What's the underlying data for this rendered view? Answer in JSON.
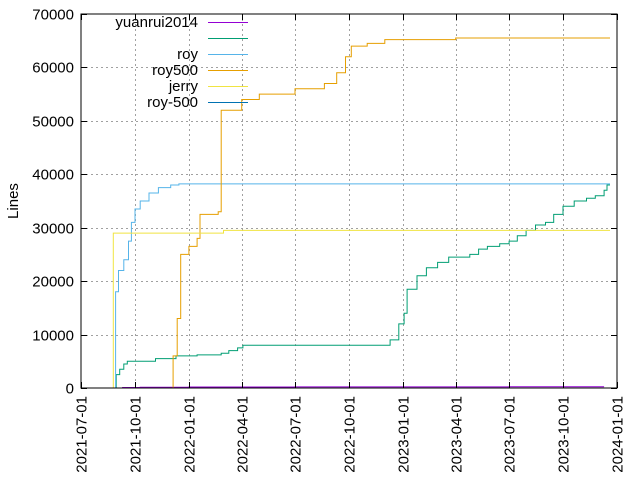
{
  "chart_data": {
    "type": "line",
    "title": "",
    "xlabel": "",
    "ylabel": "Lines",
    "x_type": "date",
    "xlim": [
      "2021-07-01",
      "2024-01-01"
    ],
    "ylim": [
      0,
      70000
    ],
    "grid": true,
    "legend_position": "top-left",
    "x_ticks": [
      "2021-07-01",
      "2021-10-01",
      "2022-01-01",
      "2022-04-01",
      "2022-07-01",
      "2022-10-01",
      "2023-01-01",
      "2023-04-01",
      "2023-07-01",
      "2023-10-01",
      "2024-01-01"
    ],
    "y_ticks": [
      0,
      10000,
      20000,
      30000,
      40000,
      50000,
      60000,
      70000
    ],
    "y_tick_labels": [
      "0",
      "10000",
      "20000",
      "30000",
      "40000",
      "50000",
      "60000",
      "70000"
    ],
    "series": [
      {
        "name": "yuanrui2014",
        "color": "#9400d3",
        "points": [
          [
            "2021-08-27",
            0
          ],
          [
            "2021-09-10",
            100
          ],
          [
            "2021-10-10",
            150
          ],
          [
            "2022-01-01",
            180
          ],
          [
            "2022-07-01",
            200
          ],
          [
            "2023-01-01",
            200
          ],
          [
            "2023-07-01",
            220
          ],
          [
            "2023-12-10",
            230
          ]
        ]
      },
      {
        "name": "",
        "color": "#009e73",
        "points": [
          [
            "2021-08-26",
            0
          ],
          [
            "2021-08-30",
            2500
          ],
          [
            "2021-09-05",
            3500
          ],
          [
            "2021-09-12",
            4500
          ],
          [
            "2021-09-18",
            5000
          ],
          [
            "2021-10-25",
            5000
          ],
          [
            "2021-11-05",
            5500
          ],
          [
            "2021-12-10",
            6000
          ],
          [
            "2022-01-15",
            6200
          ],
          [
            "2022-02-25",
            6500
          ],
          [
            "2022-03-10",
            7000
          ],
          [
            "2022-03-25",
            7500
          ],
          [
            "2022-04-03",
            8000
          ],
          [
            "2022-12-01",
            8000
          ],
          [
            "2022-12-10",
            9000
          ],
          [
            "2022-12-25",
            12000
          ],
          [
            "2023-01-03",
            14000
          ],
          [
            "2023-01-08",
            18500
          ],
          [
            "2023-01-25",
            21000
          ],
          [
            "2023-02-10",
            22500
          ],
          [
            "2023-03-01",
            23500
          ],
          [
            "2023-03-20",
            24500
          ],
          [
            "2023-04-25",
            25000
          ],
          [
            "2023-05-10",
            26000
          ],
          [
            "2023-05-25",
            26500
          ],
          [
            "2023-06-15",
            27000
          ],
          [
            "2023-07-01",
            27500
          ],
          [
            "2023-07-15",
            28500
          ],
          [
            "2023-07-30",
            29500
          ],
          [
            "2023-08-15",
            30500
          ],
          [
            "2023-09-01",
            31000
          ],
          [
            "2023-09-15",
            32500
          ],
          [
            "2023-10-01",
            34000
          ],
          [
            "2023-10-20",
            35000
          ],
          [
            "2023-11-10",
            35500
          ],
          [
            "2023-11-25",
            36000
          ],
          [
            "2023-12-10",
            37000
          ],
          [
            "2023-12-15",
            38000
          ],
          [
            "2023-12-20",
            38000
          ]
        ]
      },
      {
        "name": "roy",
        "color": "#56b4e9",
        "points": [
          [
            "2021-08-26",
            0
          ],
          [
            "2021-08-29",
            18000
          ],
          [
            "2021-09-03",
            22000
          ],
          [
            "2021-09-12",
            24000
          ],
          [
            "2021-09-20",
            27500
          ],
          [
            "2021-09-25",
            31000
          ],
          [
            "2021-10-01",
            33500
          ],
          [
            "2021-10-10",
            35000
          ],
          [
            "2021-10-25",
            36500
          ],
          [
            "2021-11-10",
            37500
          ],
          [
            "2021-12-01",
            38000
          ],
          [
            "2021-12-15",
            38200
          ],
          [
            "2023-12-20",
            38200
          ]
        ]
      },
      {
        "name": "roy500",
        "color": "#e69f00",
        "points": [
          [
            "2021-12-01",
            0
          ],
          [
            "2021-12-05",
            6000
          ],
          [
            "2021-12-12",
            13000
          ],
          [
            "2021-12-18",
            25000
          ],
          [
            "2022-01-01",
            26500
          ],
          [
            "2022-01-15",
            28000
          ],
          [
            "2022-01-20",
            32500
          ],
          [
            "2022-02-20",
            33000
          ],
          [
            "2022-02-25",
            52000
          ],
          [
            "2022-04-01",
            54000
          ],
          [
            "2022-05-01",
            55000
          ],
          [
            "2022-06-01",
            55000
          ],
          [
            "2022-07-01",
            56000
          ],
          [
            "2022-08-20",
            57000
          ],
          [
            "2022-09-10",
            59000
          ],
          [
            "2022-09-25",
            62000
          ],
          [
            "2022-10-05",
            64000
          ],
          [
            "2022-11-01",
            64500
          ],
          [
            "2022-12-01",
            65200
          ],
          [
            "2023-03-01",
            65200
          ],
          [
            "2023-04-01",
            65500
          ],
          [
            "2023-12-20",
            65500
          ]
        ]
      },
      {
        "name": "jerry",
        "color": "#f0e442",
        "points": [
          [
            "2021-08-23",
            0
          ],
          [
            "2021-08-25",
            29000
          ],
          [
            "2022-03-01",
            29500
          ],
          [
            "2023-12-20",
            29500
          ]
        ]
      },
      {
        "name": "roy-500",
        "color": "#0072b2",
        "points": [
          [
            "2021-08-27",
            0
          ],
          [
            "2023-12-20",
            0
          ]
        ]
      }
    ]
  }
}
